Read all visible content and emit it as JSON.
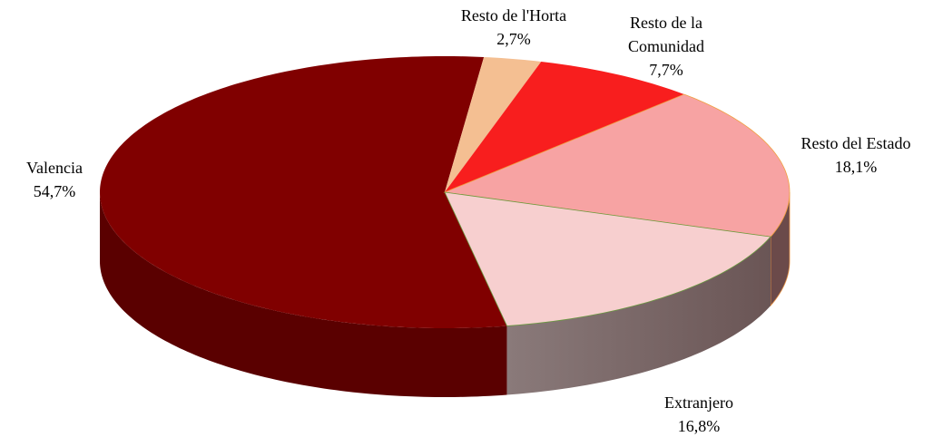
{
  "chart_data": {
    "type": "pie",
    "categories": [
      "Valencia",
      "Resto de l'Horta",
      "Resto de la Comunidad",
      "Resto del Estado",
      "Extranjero"
    ],
    "values": [
      54.7,
      2.7,
      7.7,
      18.1,
      16.8
    ],
    "value_labels": [
      "54,7%",
      "2,7%",
      "7,7%",
      "18,1%",
      "16,8%"
    ],
    "colors": [
      "#800000",
      "#f4bf92",
      "#f81e1e",
      "#f7a3a3",
      "#f7cfcf"
    ]
  }
}
